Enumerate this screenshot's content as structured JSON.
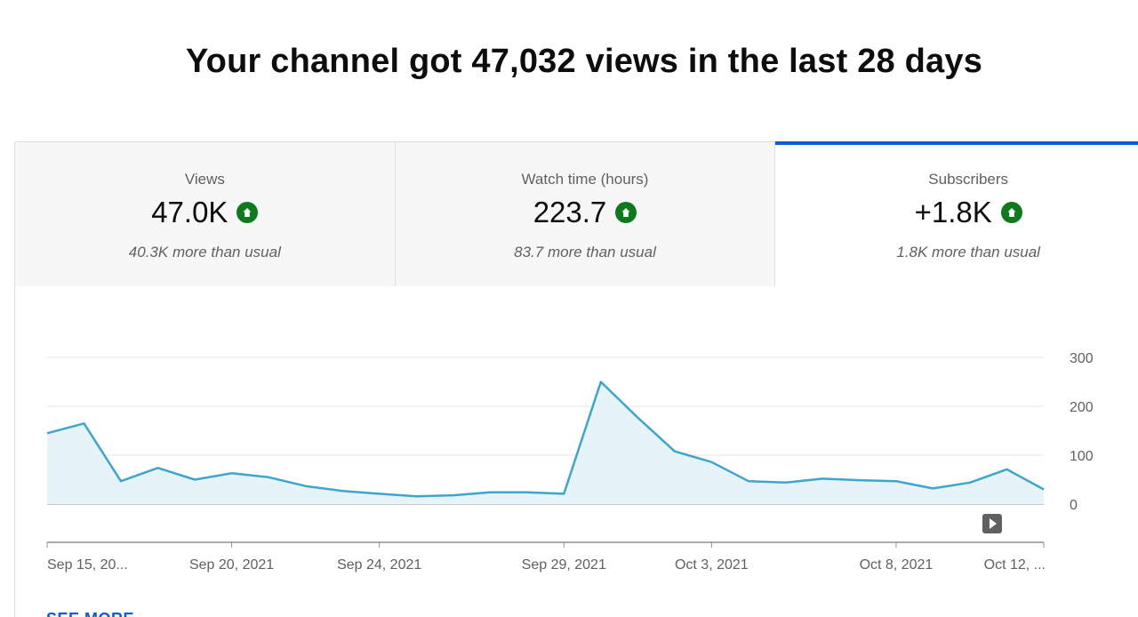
{
  "headline": "Your channel got 47,032 views in the last 28 days",
  "tabs": [
    {
      "label": "Views",
      "value": "47.0K",
      "note": "40.3K more than usual",
      "trend": "up",
      "active": false
    },
    {
      "label": "Watch time (hours)",
      "value": "223.7",
      "note": "83.7 more than usual",
      "trend": "up",
      "active": false
    },
    {
      "label": "Subscribers",
      "value": "+1.8K",
      "note": "1.8K more than usual",
      "trend": "up",
      "active": true
    }
  ],
  "colors": {
    "accent": "#065fd4",
    "trend_up": "#0f7a1d",
    "line": "#3ea6cc",
    "area": "#e6f4f9"
  },
  "chart_data": {
    "type": "area",
    "x": [
      "Sep 15, 2021",
      "Sep 16, 2021",
      "Sep 17, 2021",
      "Sep 18, 2021",
      "Sep 19, 2021",
      "Sep 20, 2021",
      "Sep 21, 2021",
      "Sep 22, 2021",
      "Sep 23, 2021",
      "Sep 24, 2021",
      "Sep 25, 2021",
      "Sep 26, 2021",
      "Sep 27, 2021",
      "Sep 28, 2021",
      "Sep 29, 2021",
      "Sep 30, 2021",
      "Oct 1, 2021",
      "Oct 2, 2021",
      "Oct 3, 2021",
      "Oct 4, 2021",
      "Oct 5, 2021",
      "Oct 6, 2021",
      "Oct 7, 2021",
      "Oct 8, 2021",
      "Oct 9, 2021",
      "Oct 10, 2021",
      "Oct 11, 2021",
      "Oct 12, 2021"
    ],
    "series": [
      {
        "values": [
          145,
          165,
          47,
          74,
          50,
          63,
          55,
          37,
          27,
          21,
          16,
          18,
          24,
          24,
          21,
          250,
          177,
          108,
          86,
          47,
          44,
          52,
          49,
          47,
          32,
          44,
          71,
          30
        ]
      }
    ],
    "yticks": [
      "0",
      "100",
      "200",
      "300"
    ],
    "ylim": [
      0,
      300
    ],
    "xtick_labels": [
      {
        "index": 0,
        "label": "Sep 15, 20..."
      },
      {
        "index": 5,
        "label": "Sep 20, 2021"
      },
      {
        "index": 9,
        "label": "Sep 24, 2021"
      },
      {
        "index": 14,
        "label": "Sep 29, 2021"
      },
      {
        "index": 18,
        "label": "Oct 3, 2021"
      },
      {
        "index": 23,
        "label": "Oct 8, 2021"
      },
      {
        "index": 27,
        "label": "Oct 12, ..."
      }
    ],
    "grid": true,
    "marker_icon": "play-icon"
  },
  "see_more": "SEE MORE"
}
